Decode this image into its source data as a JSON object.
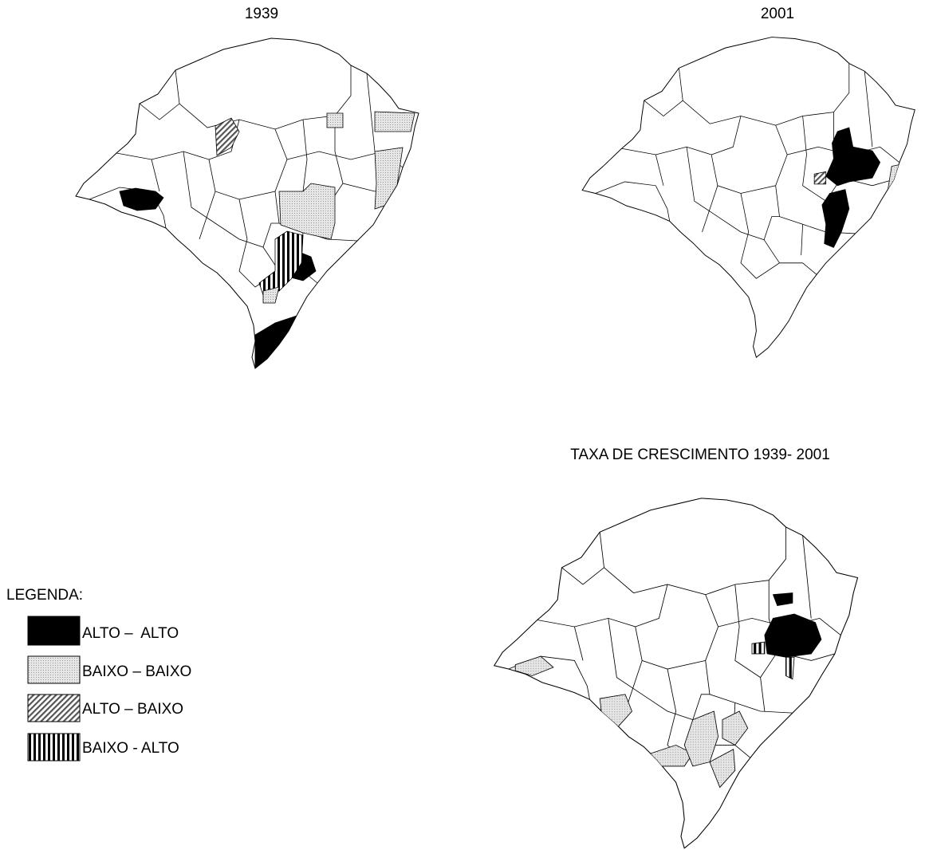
{
  "maps": [
    {
      "title": "1939"
    },
    {
      "title": "2001"
    },
    {
      "title": "TAXA DE CRESCIMENTO 1939- 2001"
    }
  ],
  "legend": {
    "title": "LEGENDA:",
    "items": [
      {
        "label": "ALTO –  ALTO"
      },
      {
        "label": "BAIXO – BAIXO"
      },
      {
        "label": "ALTO – BAIXO"
      },
      {
        "label": "BAIXO - ALTO"
      }
    ]
  }
}
